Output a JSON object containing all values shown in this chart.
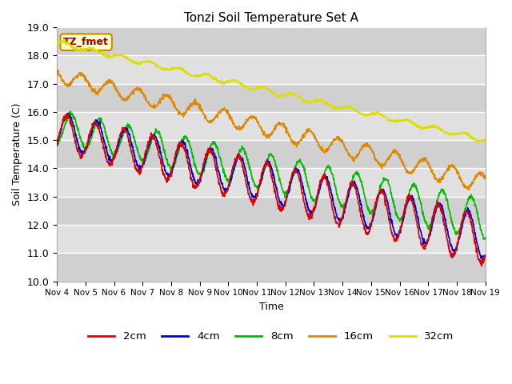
{
  "title": "Tonzi Soil Temperature Set A",
  "xlabel": "Time",
  "ylabel": "Soil Temperature (C)",
  "ylim": [
    10.0,
    19.0
  ],
  "yticks": [
    10.0,
    11.0,
    12.0,
    13.0,
    14.0,
    15.0,
    16.0,
    17.0,
    18.0,
    19.0
  ],
  "xtick_labels": [
    "Nov 4",
    "Nov 5",
    "Nov 6",
    "Nov 7",
    "Nov 8",
    "Nov 9",
    "Nov 10",
    "Nov 11",
    "Nov 12",
    "Nov 13",
    "Nov 14",
    "Nov 15",
    "Nov 16",
    "Nov 17",
    "Nov 18",
    "Nov 19"
  ],
  "legend_labels": [
    "2cm",
    "4cm",
    "8cm",
    "16cm",
    "32cm"
  ],
  "legend_colors": [
    "#dd0000",
    "#0000cc",
    "#00bb00",
    "#dd8800",
    "#dddd00"
  ],
  "line_widths": [
    1.2,
    1.2,
    1.2,
    1.2,
    1.2
  ],
  "background_color": "#ffffff",
  "plot_bg_color": "#e8e8e8",
  "annotation_text": "TZ_fmet",
  "annotation_color": "#990000",
  "annotation_bg": "#ffffcc",
  "annotation_edge": "#cc8800"
}
